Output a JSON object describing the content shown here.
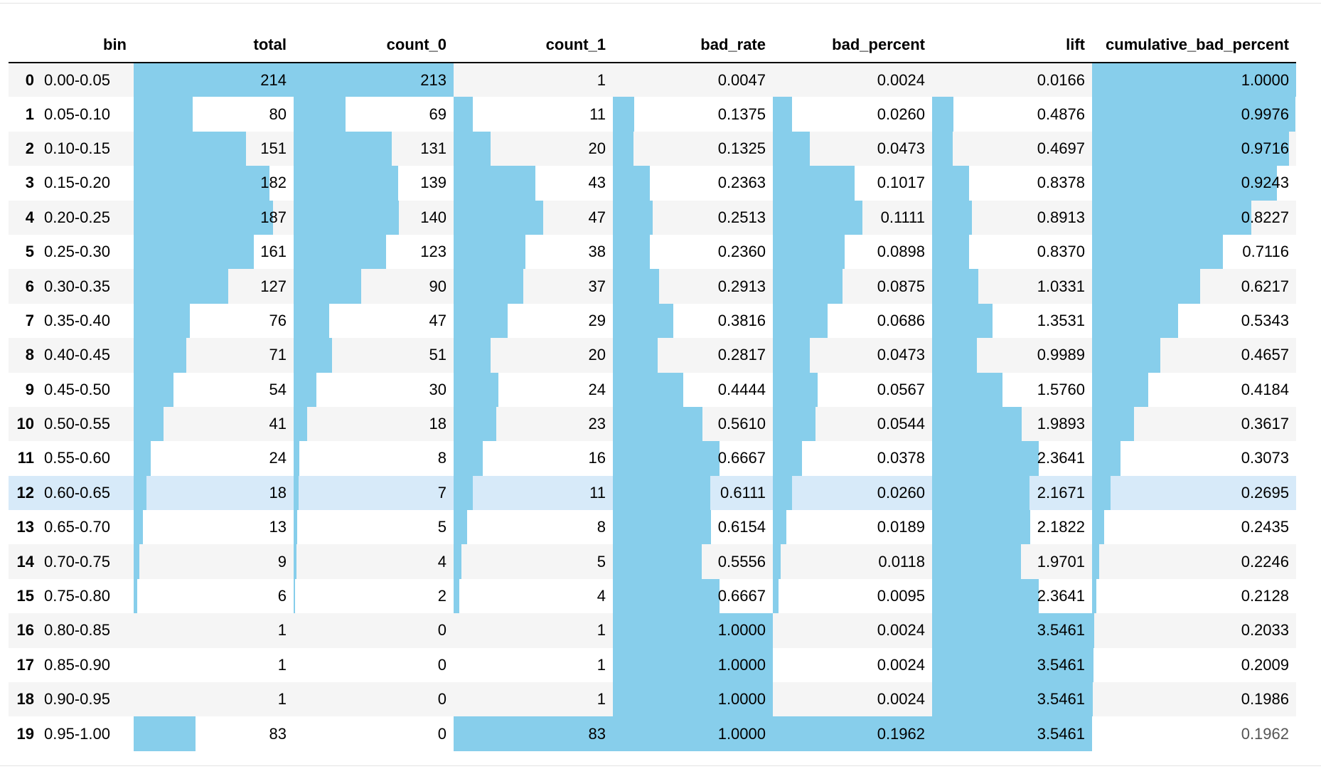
{
  "columns": {
    "bin": "bin",
    "total": "total",
    "count_0": "count_0",
    "count_1": "count_1",
    "bad_rate": "bad_rate",
    "bad_percent": "bad_percent",
    "lift": "lift",
    "cumulative_bad_percent": "cumulative_bad_percent"
  },
  "bar_color": "#87ceeb",
  "highlight_color": "#d7eaf9",
  "rows": [
    {
      "index": "0",
      "bin": "0.00-0.05",
      "total": "214",
      "count_0": "213",
      "count_1": "1",
      "bad_rate": "0.0047",
      "bad_percent": "0.0024",
      "lift": "0.0166",
      "cumulative_bad_percent": "1.0000"
    },
    {
      "index": "1",
      "bin": "0.05-0.10",
      "total": "80",
      "count_0": "69",
      "count_1": "11",
      "bad_rate": "0.1375",
      "bad_percent": "0.0260",
      "lift": "0.4876",
      "cumulative_bad_percent": "0.9976"
    },
    {
      "index": "2",
      "bin": "0.10-0.15",
      "total": "151",
      "count_0": "131",
      "count_1": "20",
      "bad_rate": "0.1325",
      "bad_percent": "0.0473",
      "lift": "0.4697",
      "cumulative_bad_percent": "0.9716"
    },
    {
      "index": "3",
      "bin": "0.15-0.20",
      "total": "182",
      "count_0": "139",
      "count_1": "43",
      "bad_rate": "0.2363",
      "bad_percent": "0.1017",
      "lift": "0.8378",
      "cumulative_bad_percent": "0.9243"
    },
    {
      "index": "4",
      "bin": "0.20-0.25",
      "total": "187",
      "count_0": "140",
      "count_1": "47",
      "bad_rate": "0.2513",
      "bad_percent": "0.1111",
      "lift": "0.8913",
      "cumulative_bad_percent": "0.8227"
    },
    {
      "index": "5",
      "bin": "0.25-0.30",
      "total": "161",
      "count_0": "123",
      "count_1": "38",
      "bad_rate": "0.2360",
      "bad_percent": "0.0898",
      "lift": "0.8370",
      "cumulative_bad_percent": "0.7116"
    },
    {
      "index": "6",
      "bin": "0.30-0.35",
      "total": "127",
      "count_0": "90",
      "count_1": "37",
      "bad_rate": "0.2913",
      "bad_percent": "0.0875",
      "lift": "1.0331",
      "cumulative_bad_percent": "0.6217"
    },
    {
      "index": "7",
      "bin": "0.35-0.40",
      "total": "76",
      "count_0": "47",
      "count_1": "29",
      "bad_rate": "0.3816",
      "bad_percent": "0.0686",
      "lift": "1.3531",
      "cumulative_bad_percent": "0.5343"
    },
    {
      "index": "8",
      "bin": "0.40-0.45",
      "total": "71",
      "count_0": "51",
      "count_1": "20",
      "bad_rate": "0.2817",
      "bad_percent": "0.0473",
      "lift": "0.9989",
      "cumulative_bad_percent": "0.4657"
    },
    {
      "index": "9",
      "bin": "0.45-0.50",
      "total": "54",
      "count_0": "30",
      "count_1": "24",
      "bad_rate": "0.4444",
      "bad_percent": "0.0567",
      "lift": "1.5760",
      "cumulative_bad_percent": "0.4184"
    },
    {
      "index": "10",
      "bin": "0.50-0.55",
      "total": "41",
      "count_0": "18",
      "count_1": "23",
      "bad_rate": "0.5610",
      "bad_percent": "0.0544",
      "lift": "1.9893",
      "cumulative_bad_percent": "0.3617"
    },
    {
      "index": "11",
      "bin": "0.55-0.60",
      "total": "24",
      "count_0": "8",
      "count_1": "16",
      "bad_rate": "0.6667",
      "bad_percent": "0.0378",
      "lift": "2.3641",
      "cumulative_bad_percent": "0.3073"
    },
    {
      "index": "12",
      "bin": "0.60-0.65",
      "total": "18",
      "count_0": "7",
      "count_1": "11",
      "bad_rate": "0.6111",
      "bad_percent": "0.0260",
      "lift": "2.1671",
      "cumulative_bad_percent": "0.2695",
      "highlighted": true
    },
    {
      "index": "13",
      "bin": "0.65-0.70",
      "total": "13",
      "count_0": "5",
      "count_1": "8",
      "bad_rate": "0.6154",
      "bad_percent": "0.0189",
      "lift": "2.1822",
      "cumulative_bad_percent": "0.2435"
    },
    {
      "index": "14",
      "bin": "0.70-0.75",
      "total": "9",
      "count_0": "4",
      "count_1": "5",
      "bad_rate": "0.5556",
      "bad_percent": "0.0118",
      "lift": "1.9701",
      "cumulative_bad_percent": "0.2246"
    },
    {
      "index": "15",
      "bin": "0.75-0.80",
      "total": "6",
      "count_0": "2",
      "count_1": "4",
      "bad_rate": "0.6667",
      "bad_percent": "0.0095",
      "lift": "2.3641",
      "cumulative_bad_percent": "0.2128"
    },
    {
      "index": "16",
      "bin": "0.80-0.85",
      "total": "1",
      "count_0": "0",
      "count_1": "1",
      "bad_rate": "1.0000",
      "bad_percent": "0.0024",
      "lift": "3.5461",
      "cumulative_bad_percent": "0.2033"
    },
    {
      "index": "17",
      "bin": "0.85-0.90",
      "total": "1",
      "count_0": "0",
      "count_1": "1",
      "bad_rate": "1.0000",
      "bad_percent": "0.0024",
      "lift": "3.5461",
      "cumulative_bad_percent": "0.2009"
    },
    {
      "index": "18",
      "bin": "0.90-0.95",
      "total": "1",
      "count_0": "0",
      "count_1": "1",
      "bad_rate": "1.0000",
      "bad_percent": "0.0024",
      "lift": "3.5461",
      "cumulative_bad_percent": "0.1986"
    },
    {
      "index": "19",
      "bin": "0.95-1.00",
      "total": "83",
      "count_0": "0",
      "count_1": "83",
      "bad_rate": "1.0000",
      "bad_percent": "0.1962",
      "lift": "3.5461",
      "cumulative_bad_percent": "0.1962"
    }
  ]
}
